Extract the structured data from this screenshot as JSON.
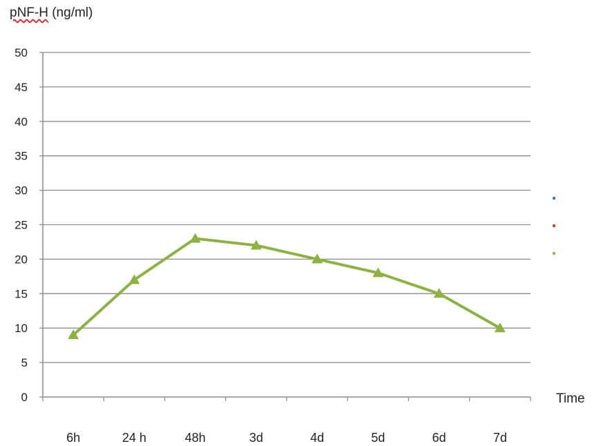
{
  "chart_data": {
    "type": "line",
    "ylabel_prefix": "pNF-H",
    "ylabel_suffix": " (ng/ml)",
    "xlabel": "Time",
    "categories": [
      "6h",
      "24 h",
      "48h",
      "3d",
      "4d",
      "5d",
      "6d",
      "7d"
    ],
    "series": [
      {
        "values": [
          9,
          17,
          23,
          22,
          20,
          18,
          15,
          10
        ],
        "color": "#8db240",
        "marker": "triangle"
      }
    ],
    "ylim": [
      0,
      50
    ],
    "yticks": [
      0,
      5,
      10,
      15,
      20,
      25,
      30,
      35,
      40,
      45,
      50
    ],
    "grid": true,
    "legend": {
      "placement": "right",
      "markers": [
        {
          "color": "#4a7ebb"
        },
        {
          "color": "#be4b48"
        },
        {
          "color": "#98b954"
        }
      ]
    }
  }
}
